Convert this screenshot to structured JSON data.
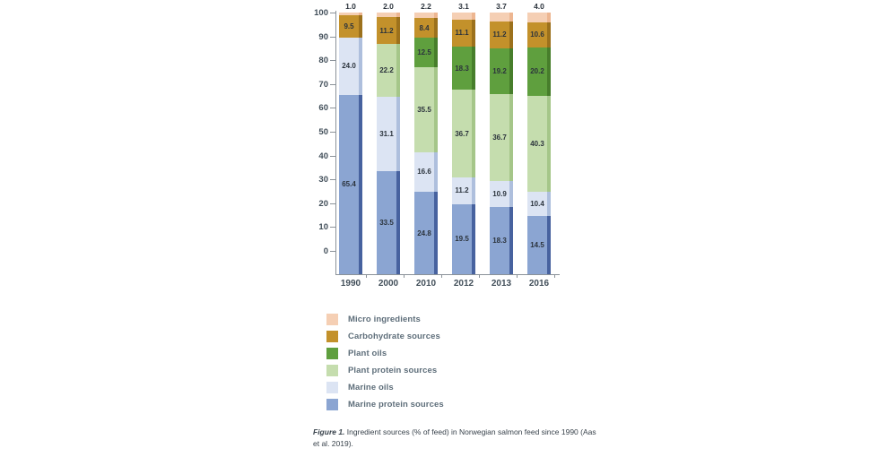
{
  "figure": {
    "caption": {
      "label": "Figure 1.",
      "text": " Ingredient sources (% of feed) in Norwegian salmon feed since 1990 (Aas et al. 2019)."
    }
  },
  "chart_data": {
    "type": "bar",
    "stacked": true,
    "title": "",
    "xlabel": "",
    "ylabel": "",
    "ylim": [
      0,
      100
    ],
    "yticks": [
      0,
      10,
      20,
      30,
      40,
      50,
      60,
      70,
      80,
      90,
      100
    ],
    "grid": false,
    "legend_position": "below-left",
    "categories": [
      "1990",
      "2000",
      "2010",
      "2012",
      "2013",
      "2016"
    ],
    "series": [
      {
        "name": "Micro ingredients",
        "color": "#f5cfb4",
        "edge_color": "#edb691",
        "label_position": "above-bar",
        "values": [
          1.0,
          2.0,
          2.2,
          3.1,
          3.7,
          4.0
        ]
      },
      {
        "name": "Carbohydrate sources",
        "color": "#c3912b",
        "edge_color": "#9c711c",
        "label_position": "inside",
        "values": [
          9.5,
          11.2,
          8.4,
          11.1,
          11.2,
          10.6
        ]
      },
      {
        "name": "Plant oils",
        "color": "#5f9f3e",
        "edge_color": "#477e2b",
        "label_position": "inside",
        "values": [
          0,
          0,
          12.5,
          18.3,
          19.2,
          20.2
        ]
      },
      {
        "name": "Plant protein sources",
        "color": "#c5ddae",
        "edge_color": "#a5c689",
        "label_position": "inside",
        "values": [
          0,
          22.2,
          35.5,
          36.7,
          36.7,
          40.3
        ]
      },
      {
        "name": "Marine oils",
        "color": "#dce4f3",
        "edge_color": "#aebfdd",
        "label_position": "inside",
        "values": [
          24.0,
          31.1,
          16.6,
          11.2,
          10.9,
          10.4
        ]
      },
      {
        "name": "Marine protein sources",
        "color": "#8ba5d2",
        "edge_color": "#47629f",
        "label_position": "inside",
        "values": [
          65.4,
          33.5,
          24.8,
          19.5,
          18.3,
          14.5
        ]
      }
    ]
  }
}
